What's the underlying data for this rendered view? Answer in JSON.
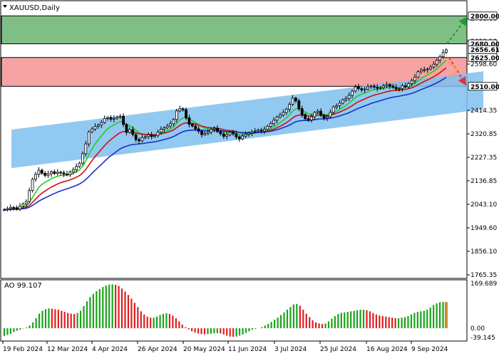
{
  "chart_data": [
    {
      "type": "candlestick",
      "title": "XAUUSD,Daily",
      "timeframe": "Daily",
      "x_tick_labels": [
        "19 Feb 2024",
        "12 Mar 2024",
        "4 Apr 2024",
        "26 Apr 2024",
        "20 May 2024",
        "11 Jun 2024",
        "3 Jul 2024",
        "25 Jul 2024",
        "16 Aug 2024",
        "9 Sep 2024"
      ],
      "y_tick_labels": [
        "2788.60",
        "2690.10",
        "2598.60",
        "2414.35",
        "2320.85",
        "2227.35",
        "2136.85",
        "2043.10",
        "1949.60",
        "1856.10",
        "1765.35"
      ],
      "ylim": [
        1765.35,
        2800.0
      ],
      "price_levels": [
        {
          "label": "2800.00",
          "value": 2800.0,
          "style": "boxed"
        },
        {
          "label": "2680.00",
          "value": 2680.0,
          "style": "boxed"
        },
        {
          "label": "2656.61",
          "value": 2656.61,
          "style": "boxed"
        },
        {
          "label": "2625.00",
          "value": 2625.0,
          "style": "boxed"
        },
        {
          "label": "2510.00",
          "value": 2510.0,
          "style": "boxed"
        }
      ],
      "zones": [
        {
          "name": "green-zone",
          "from": 2680.0,
          "to": 2800.0,
          "color": "#7fbf86"
        },
        {
          "name": "red-zone",
          "from": 2510.0,
          "to": 2625.0,
          "color": "#f5a3a3"
        }
      ],
      "channel": {
        "color": "#7fbfee",
        "start": {
          "date": "19 Feb 2024",
          "low": 2186.0,
          "high": 2338.0
        },
        "end": {
          "date": "25 Sep 2024",
          "low": 2418.0,
          "high": 2570.0
        }
      },
      "series": [
        {
          "name": "price",
          "type": "candlestick",
          "close": [
            2022,
            2026,
            2031,
            2030,
            2024,
            2036,
            2045,
            2054,
            2098,
            2143,
            2162,
            2178,
            2166,
            2158,
            2164,
            2172,
            2165,
            2170,
            2168,
            2163,
            2160,
            2171,
            2180,
            2192,
            2205,
            2242,
            2281,
            2329,
            2340,
            2351,
            2356,
            2366,
            2382,
            2386,
            2379,
            2383,
            2388,
            2391,
            2358,
            2327,
            2338,
            2318,
            2298,
            2293,
            2306,
            2310,
            2317,
            2310,
            2314,
            2328,
            2339,
            2345,
            2352,
            2361,
            2378,
            2412,
            2421,
            2417,
            2385,
            2359,
            2352,
            2341,
            2331,
            2318,
            2323,
            2328,
            2339,
            2343,
            2330,
            2321,
            2311,
            2317,
            2327,
            2321,
            2309,
            2301,
            2312,
            2319,
            2324,
            2329,
            2332,
            2336,
            2332,
            2339,
            2351,
            2362,
            2375,
            2388,
            2396,
            2406,
            2419,
            2438,
            2463,
            2452,
            2421,
            2398,
            2381,
            2376,
            2389,
            2406,
            2411,
            2395,
            2384,
            2389,
            2406,
            2428,
            2433,
            2443,
            2456,
            2462,
            2474,
            2491,
            2508,
            2501,
            2496,
            2499,
            2508,
            2511,
            2507,
            2502,
            2505,
            2512,
            2517,
            2511,
            2506,
            2499,
            2501,
            2512,
            2508,
            2521,
            2533,
            2547,
            2568,
            2575,
            2576,
            2579,
            2587,
            2598,
            2614,
            2628,
            2646,
            2656
          ],
          "open": [
            2022,
            2022,
            2026,
            2031,
            2030,
            2024,
            2036,
            2045,
            2054,
            2098,
            2143,
            2162,
            2178,
            2166,
            2158,
            2164,
            2172,
            2165,
            2170,
            2168,
            2163,
            2160,
            2171,
            2180,
            2192,
            2205,
            2242,
            2281,
            2329,
            2340,
            2351,
            2356,
            2366,
            2382,
            2386,
            2379,
            2383,
            2388,
            2391,
            2358,
            2327,
            2338,
            2318,
            2298,
            2293,
            2306,
            2310,
            2317,
            2310,
            2314,
            2328,
            2339,
            2345,
            2352,
            2361,
            2378,
            2412,
            2421,
            2417,
            2385,
            2359,
            2352,
            2341,
            2331,
            2318,
            2323,
            2328,
            2339,
            2343,
            2330,
            2321,
            2311,
            2317,
            2327,
            2321,
            2309,
            2301,
            2312,
            2319,
            2324,
            2329,
            2332,
            2336,
            2332,
            2339,
            2351,
            2362,
            2375,
            2388,
            2396,
            2406,
            2419,
            2438,
            2463,
            2452,
            2421,
            2398,
            2381,
            2376,
            2389,
            2406,
            2411,
            2395,
            2384,
            2389,
            2406,
            2428,
            2433,
            2443,
            2456,
            2462,
            2474,
            2491,
            2508,
            2501,
            2496,
            2499,
            2508,
            2511,
            2507,
            2502,
            2505,
            2512,
            2517,
            2511,
            2506,
            2499,
            2501,
            2512,
            2508,
            2521,
            2533,
            2547,
            2568,
            2575,
            2576,
            2579,
            2587,
            2598,
            2614,
            2628,
            2646
          ]
        },
        {
          "name": "ma-fast",
          "type": "line",
          "color": "#22cc22"
        },
        {
          "name": "ma-mid",
          "type": "line",
          "color": "#cc1111"
        },
        {
          "name": "ma-slow",
          "type": "line",
          "color": "#1a2fcc"
        }
      ],
      "forecast_arrows": [
        {
          "name": "bullish-target",
          "from": 2680.0,
          "to": 2800.0,
          "color": "#1f9a2f",
          "style": "dashed"
        },
        {
          "name": "bearish-target",
          "from": 2625.0,
          "to": 2510.0,
          "color": "#e23535",
          "style": "dashed"
        }
      ]
    },
    {
      "type": "bar",
      "title": "AO 99.107",
      "indicator": "AO",
      "current_value": 99.107,
      "y_tick_labels": [
        "169.689",
        "0.00",
        "-39.145"
      ],
      "ylim": [
        -39.145,
        169.689
      ],
      "up_color": "#1aa31a",
      "down_color": "#dd1f1f",
      "values": [
        -25,
        -22,
        -18,
        -12,
        -8,
        -5,
        -1,
        3,
        10,
        22,
        38,
        55,
        66,
        72,
        75,
        74,
        72,
        70,
        66,
        62,
        58,
        55,
        54,
        58,
        66,
        84,
        102,
        118,
        130,
        140,
        148,
        156,
        162,
        165,
        166,
        164,
        160,
        150,
        139,
        126,
        112,
        96,
        80,
        64,
        52,
        44,
        40,
        40,
        44,
        50,
        54,
        56,
        54,
        48,
        38,
        26,
        14,
        4,
        -4,
        -10,
        -14,
        -17,
        -19,
        -20,
        -19,
        -18,
        -16,
        -16,
        -17,
        -20,
        -24,
        -27,
        -28,
        -27,
        -24,
        -20,
        -15,
        -10,
        -5,
        -2,
        0,
        4,
        10,
        16,
        24,
        32,
        40,
        50,
        60,
        70,
        80,
        90,
        92,
        85,
        70,
        55,
        42,
        30,
        22,
        18,
        16,
        18,
        26,
        36,
        46,
        54,
        58,
        60,
        62,
        64,
        66,
        68,
        70,
        70,
        68,
        64,
        58,
        52,
        48,
        46,
        44,
        42,
        40,
        38,
        38,
        40,
        42,
        46,
        52,
        58,
        62,
        64,
        66,
        70,
        78,
        88,
        94,
        98,
        99.107,
        99.107
      ]
    }
  ]
}
